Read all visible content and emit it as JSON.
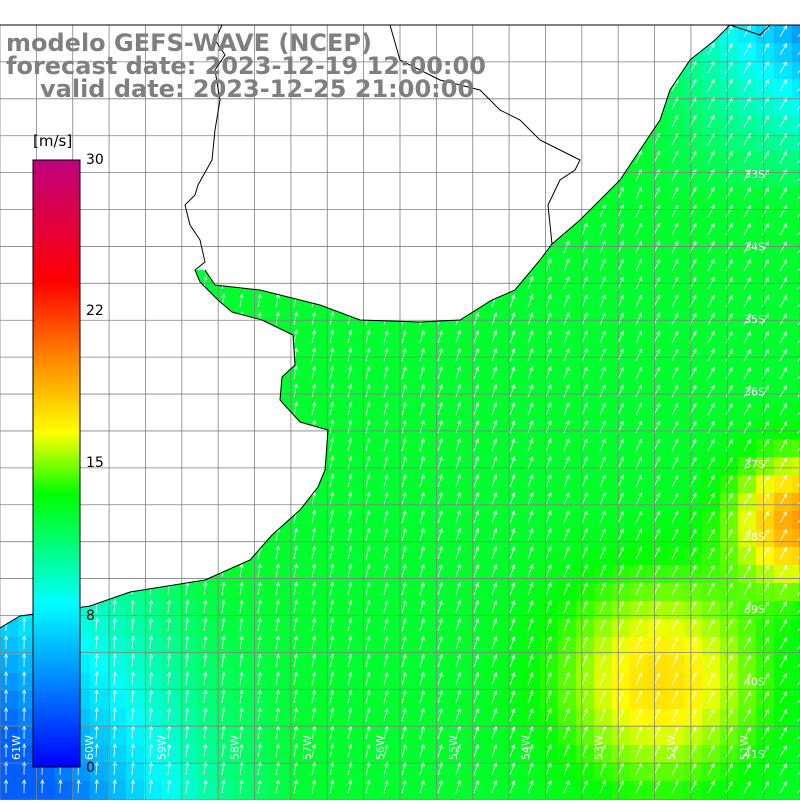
{
  "header": {
    "model": "modelo GEFS-WAVE (NCEP)",
    "forecast_date": "forecast date: 2023-12-19 12:00:00",
    "valid_date": "valid date: 2023-12-25 21:00:00"
  },
  "colorbar": {
    "unit": "[m/s]",
    "ticks": [
      "30",
      "22",
      "15",
      "8",
      "0"
    ],
    "tick_values": [
      30,
      22,
      15,
      8,
      0
    ],
    "colors": [
      "#0000ff",
      "#00ffff",
      "#00ff00",
      "#ffff00",
      "#ff8000",
      "#ff0000",
      "#c00080"
    ]
  },
  "map": {
    "lat_labels": [
      "33S",
      "34S",
      "35S",
      "36S",
      "37S",
      "38S",
      "39S",
      "40S",
      "41S"
    ],
    "lon_labels": [
      "61W",
      "60W",
      "59W",
      "58W",
      "57W",
      "56W",
      "55W",
      "54W",
      "53W",
      "52W",
      "51W"
    ],
    "lat_range": [
      -41.5,
      -31.0
    ],
    "lon_range": [
      -61.0,
      -50.0
    ],
    "colors": {
      "land": "#ffffff",
      "coast": "#000000",
      "grid": "#808080",
      "arrow": "#ffffff"
    }
  }
}
